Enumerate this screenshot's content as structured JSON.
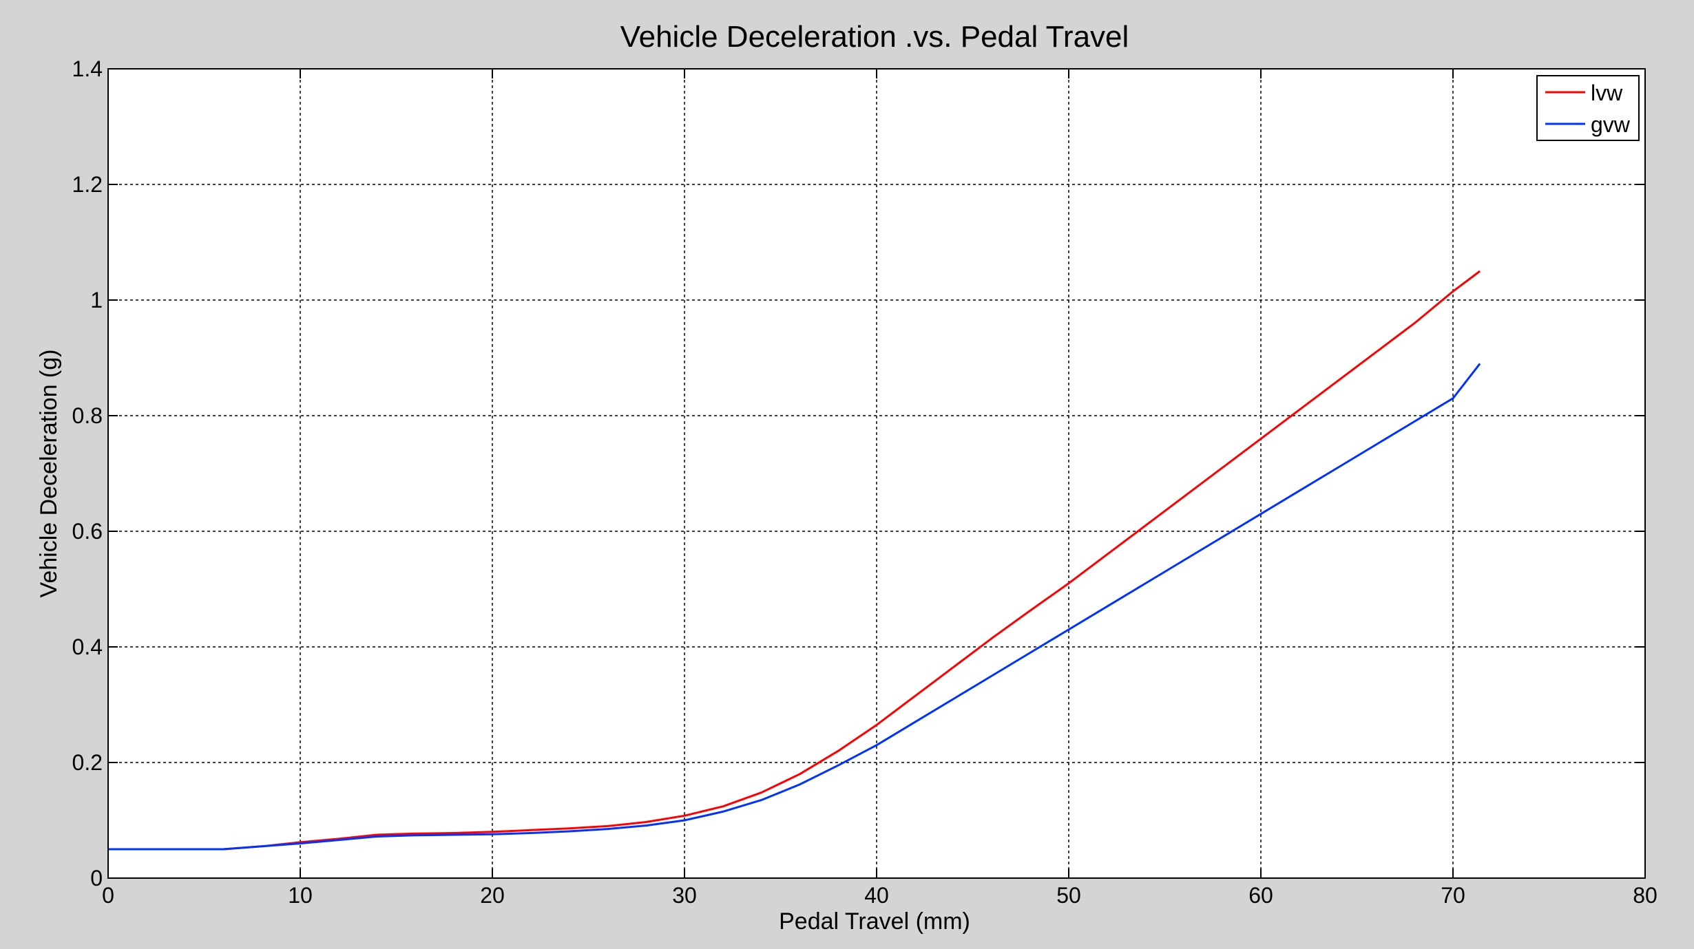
{
  "chart_data": {
    "type": "line",
    "title": "Vehicle Deceleration .vs. Pedal Travel",
    "xlabel": "Pedal Travel (mm)",
    "ylabel": "Vehicle Deceleration (g)",
    "xlim": [
      0,
      80
    ],
    "ylim": [
      0,
      1.4
    ],
    "xticks": [
      0,
      10,
      20,
      30,
      40,
      50,
      60,
      70,
      80
    ],
    "yticks": [
      0,
      0.2,
      0.4,
      0.6,
      0.8,
      1.0,
      1.2,
      1.4
    ],
    "xtick_labels": [
      "0",
      "10",
      "20",
      "30",
      "40",
      "50",
      "60",
      "70",
      "80"
    ],
    "ytick_labels": [
      "0",
      "0.2",
      "0.4",
      "0.6",
      "0.8",
      "1",
      "1.2",
      "1.4"
    ],
    "grid": true,
    "legend_position": "top-right",
    "series": [
      {
        "name": "lvw",
        "color": "#ff0000",
        "x": [
          0,
          6,
          8,
          10,
          12,
          14,
          16,
          18,
          20,
          22,
          24,
          26,
          28,
          30,
          32,
          34,
          36,
          38,
          40,
          42,
          44,
          46,
          48,
          50,
          52,
          54,
          56,
          58,
          60,
          62,
          64,
          66,
          68,
          70,
          71.4
        ],
        "y": [
          0.05,
          0.05,
          0.055,
          0.062,
          0.068,
          0.075,
          0.077,
          0.078,
          0.08,
          0.083,
          0.086,
          0.09,
          0.097,
          0.108,
          0.124,
          0.148,
          0.18,
          0.22,
          0.265,
          0.315,
          0.365,
          0.415,
          0.463,
          0.51,
          0.56,
          0.61,
          0.66,
          0.71,
          0.76,
          0.81,
          0.86,
          0.91,
          0.96,
          1.015,
          1.05
        ]
      },
      {
        "name": "gvw",
        "color": "#0033ff",
        "x": [
          0,
          6,
          8,
          10,
          12,
          14,
          16,
          18,
          20,
          22,
          24,
          26,
          28,
          30,
          32,
          34,
          36,
          38,
          40,
          42,
          44,
          46,
          48,
          50,
          52,
          54,
          56,
          58,
          60,
          62,
          64,
          66,
          68,
          70,
          71.4
        ],
        "y": [
          0.05,
          0.05,
          0.055,
          0.06,
          0.066,
          0.072,
          0.074,
          0.075,
          0.076,
          0.078,
          0.081,
          0.085,
          0.091,
          0.1,
          0.115,
          0.135,
          0.162,
          0.195,
          0.23,
          0.27,
          0.31,
          0.35,
          0.39,
          0.43,
          0.47,
          0.51,
          0.55,
          0.59,
          0.63,
          0.67,
          0.71,
          0.75,
          0.79,
          0.83,
          0.89
        ]
      }
    ]
  }
}
